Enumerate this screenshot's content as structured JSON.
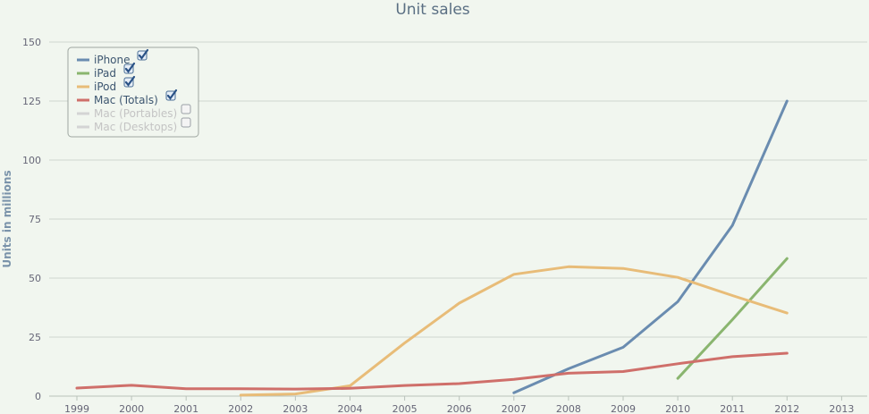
{
  "chart_data": {
    "type": "line",
    "title": "Unit sales",
    "ylabel": "Units in millions",
    "xlabel": "",
    "x": [
      "1999",
      "2000",
      "2001",
      "2002",
      "2003",
      "2004",
      "2005",
      "2006",
      "2007",
      "2008",
      "2009",
      "2010",
      "2011",
      "2012",
      "2013"
    ],
    "ylim": [
      0,
      150
    ],
    "yticks": [
      0,
      25,
      50,
      75,
      100,
      125,
      150
    ],
    "grid": true,
    "legend_position": "top-left",
    "series": [
      {
        "name": "iPhone",
        "color": "#6a8cb0",
        "checked": true,
        "enabled": true,
        "points": [
          [
            "2007",
            1.4
          ],
          [
            "2008",
            11.6
          ],
          [
            "2009",
            20.7
          ],
          [
            "2010",
            40.0
          ],
          [
            "2011",
            72.3
          ],
          [
            "2012",
            125.0
          ]
        ]
      },
      {
        "name": "iPad",
        "color": "#8ab56f",
        "checked": true,
        "enabled": true,
        "points": [
          [
            "2010",
            7.5
          ],
          [
            "2011",
            32.4
          ],
          [
            "2012",
            58.3
          ]
        ]
      },
      {
        "name": "iPod",
        "color": "#e8bc78",
        "checked": true,
        "enabled": true,
        "points": [
          [
            "2002",
            0.4
          ],
          [
            "2003",
            0.9
          ],
          [
            "2004",
            4.4
          ],
          [
            "2005",
            22.5
          ],
          [
            "2006",
            39.4
          ],
          [
            "2007",
            51.6
          ],
          [
            "2008",
            54.8
          ],
          [
            "2009",
            54.1
          ],
          [
            "2010",
            50.3
          ],
          [
            "2011",
            42.6
          ],
          [
            "2012",
            35.2
          ]
        ]
      },
      {
        "name": "Mac (Totals)",
        "color": "#cf6f6a",
        "checked": true,
        "enabled": true,
        "points": [
          [
            "1999",
            3.4
          ],
          [
            "2000",
            4.6
          ],
          [
            "2001",
            3.1
          ],
          [
            "2002",
            3.1
          ],
          [
            "2003",
            3.0
          ],
          [
            "2004",
            3.3
          ],
          [
            "2005",
            4.5
          ],
          [
            "2006",
            5.3
          ],
          [
            "2007",
            7.1
          ],
          [
            "2008",
            9.7
          ],
          [
            "2009",
            10.4
          ],
          [
            "2010",
            13.7
          ],
          [
            "2011",
            16.7
          ],
          [
            "2012",
            18.2
          ]
        ]
      },
      {
        "name": "Mac (Portables)",
        "color": "#cccccc",
        "checked": false,
        "enabled": false,
        "points": []
      },
      {
        "name": "Mac (Desktops)",
        "color": "#cccccc",
        "checked": false,
        "enabled": false,
        "points": []
      }
    ]
  }
}
